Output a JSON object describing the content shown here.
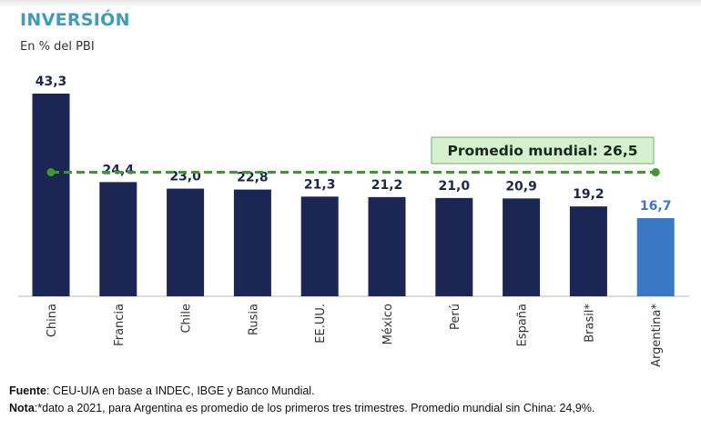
{
  "chart_data": {
    "type": "bar",
    "title": "INVERSIÓN",
    "subtitle": "En % del PBI",
    "categories": [
      "China",
      "Francia",
      "Chile",
      "Rusia",
      "EE.UU.",
      "México",
      "Perú",
      "España",
      "Brasil*",
      "Argentina*"
    ],
    "values": [
      43.3,
      24.4,
      23.0,
      22.8,
      21.3,
      21.2,
      21.0,
      20.9,
      19.2,
      16.7
    ],
    "value_labels": [
      "43,3",
      "24,4",
      "23,0",
      "22,8",
      "21,3",
      "21,2",
      "21,0",
      "20,9",
      "19,2",
      "16,7"
    ],
    "highlight_index": 9,
    "ylim": [
      0,
      45
    ],
    "grid": false,
    "reference_line": {
      "value": 26.5,
      "label": "Promedio mundial: 26,5"
    },
    "colors": {
      "bar": "#1c2654",
      "highlight": "#3a78c4",
      "label": "#1c2654",
      "highlight_label": "#3a78c4",
      "line": "#3a9a2a",
      "title": "#3d9cb8"
    }
  },
  "footer": {
    "source_label": "Fuente",
    "source_text": ": CEU-UIA en base a INDEC, IBGE y Banco Mundial.",
    "note_label": "Nota",
    "note_text": ":*dato a 2021, para Argentina es promedio de los primeros tres trimestres. Promedio mundial sin China: 24,9%."
  }
}
